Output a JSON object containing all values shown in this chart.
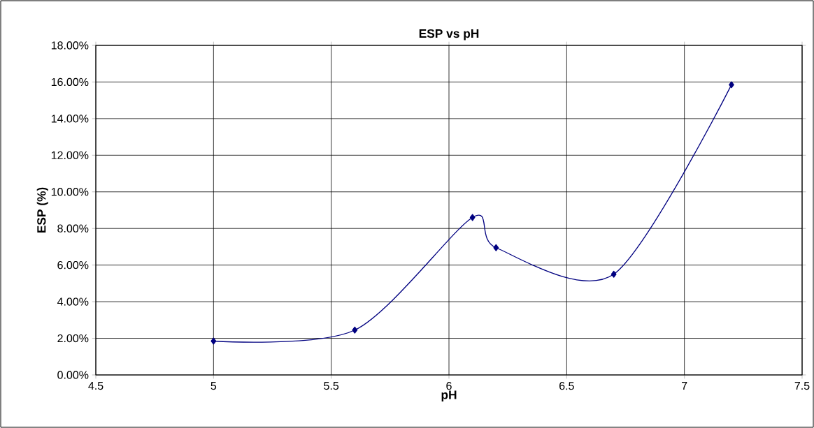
{
  "chart_data": {
    "type": "line",
    "title": "ESP  vs pH",
    "xlabel": "pH",
    "ylabel": "ESP (%)",
    "x": [
      5,
      5.6,
      6.1,
      6.2,
      6.7,
      7.2
    ],
    "series": [
      {
        "color": "#000080",
        "values": [
          0.0185,
          0.0245,
          0.086,
          0.0695,
          0.055,
          0.1585
        ]
      }
    ],
    "marker": "diamond",
    "line_style": "solid",
    "grid": true,
    "legend": false,
    "xlim": [
      4.5,
      7.5
    ],
    "xticks": [
      4.5,
      5,
      5.5,
      6,
      6.5,
      7,
      7.5
    ],
    "ylim": [
      0,
      0.18
    ],
    "yticks": [
      {
        "value": 0,
        "label": "0.00%"
      },
      {
        "value": 0.02,
        "label": "2.00%"
      },
      {
        "value": 0.04,
        "label": "4.00%"
      },
      {
        "value": 0.06,
        "label": "6.00%"
      },
      {
        "value": 0.08,
        "label": "8.00%"
      },
      {
        "value": 0.1,
        "label": "10.00%"
      },
      {
        "value": 0.12,
        "label": "12.00%"
      },
      {
        "value": 0.14,
        "label": "14.00%"
      },
      {
        "value": 0.16,
        "label": "16.00%"
      },
      {
        "value": 0.18,
        "label": "18.00%"
      }
    ]
  }
}
